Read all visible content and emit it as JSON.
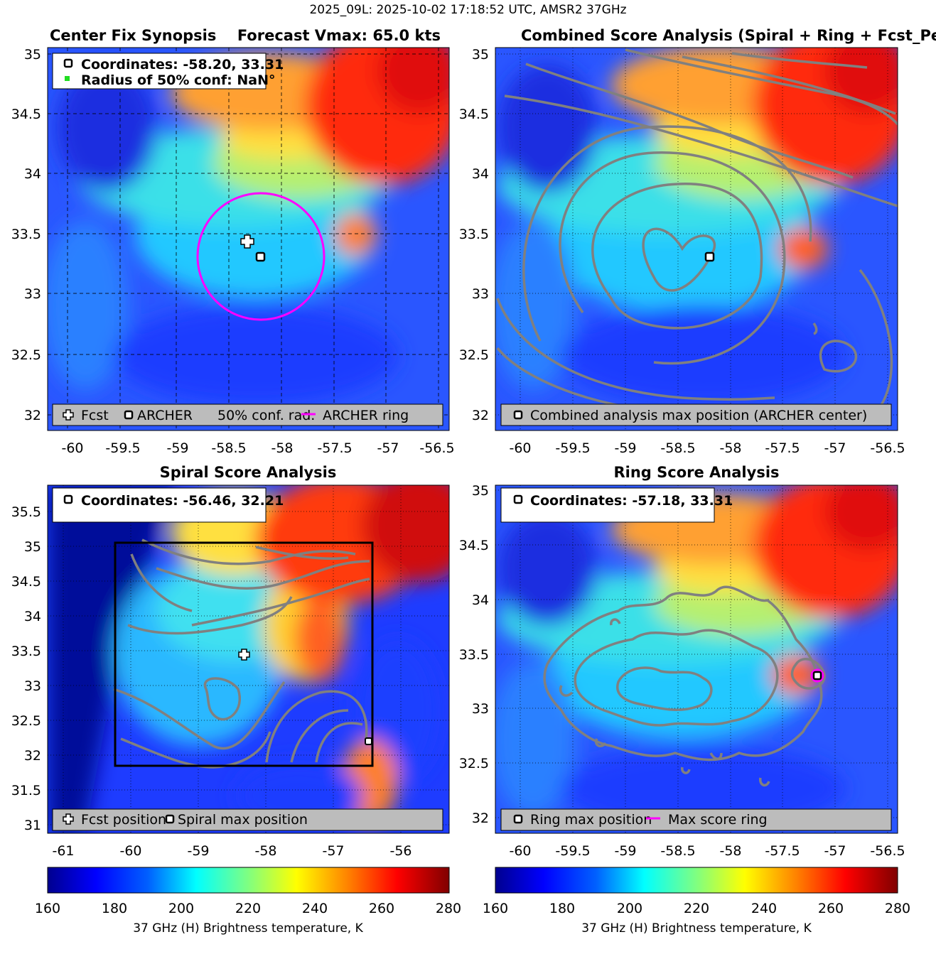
{
  "figure_title": "2025_09L: 2025-10-02 17:18:52 UTC, AMSR2 37GHz",
  "colors": {
    "contour": "#808080",
    "ring": "#ff00ff",
    "legend_bg": "#bcbcbc",
    "colormap": [
      "#00008f",
      "#0000ff",
      "#0080ff",
      "#00ffff",
      "#80ff80",
      "#ffff00",
      "#ff8000",
      "#ff0000",
      "#800000"
    ]
  },
  "chart_data": [
    {
      "type": "heatmap",
      "id": "synopsis",
      "title": "Center Fix Synopsis",
      "title_right": "Forecast Vmax: 65.0 kts",
      "xlim": [
        -60.25,
        -56.4
      ],
      "ylim": [
        31.9,
        35.1
      ],
      "xticks": [
        "-60",
        "-59.5",
        "-59",
        "-58.5",
        "-58",
        "-57.5",
        "-57",
        "-56.5"
      ],
      "yticks": [
        "32",
        "32.5",
        "33",
        "33.5",
        "34",
        "34.5",
        "35"
      ],
      "info_lines": [
        "Coordinates: -58.20, 33.31",
        "Radius of 50% conf: NaN°"
      ],
      "legend": [
        "Fcst",
        "ARCHER",
        "50% conf. rad.",
        "ARCHER ring"
      ],
      "points": {
        "fcst": [
          -58.33,
          33.45
        ],
        "archer": [
          -58.2,
          33.31
        ]
      },
      "ring": {
        "center": [
          -58.2,
          33.31
        ],
        "radius_deg": 0.6
      },
      "grid": "dashed"
    },
    {
      "type": "heatmap",
      "id": "combined",
      "title": "Combined Score Analysis (Spiral + Ring + Fcst_Pe",
      "xlim": [
        -60.25,
        -56.4
      ],
      "ylim": [
        31.9,
        35.1
      ],
      "xticks": [
        "-60",
        "-59.5",
        "-59",
        "-58.5",
        "-58",
        "-57.5",
        "-57",
        "-56.5"
      ],
      "yticks": [
        "32",
        "32.5",
        "33",
        "33.5",
        "34",
        "34.5",
        "35"
      ],
      "legend": [
        "Combined analysis max position (ARCHER center)"
      ],
      "points": {
        "archer": [
          -58.2,
          33.31
        ]
      },
      "grid": "dotted"
    },
    {
      "type": "heatmap",
      "id": "spiral",
      "title": "Spiral Score Analysis",
      "xlim": [
        -61.2,
        -55.3
      ],
      "ylim": [
        30.9,
        35.9
      ],
      "xticks": [
        "-61",
        "-60",
        "-59",
        "-58",
        "-57",
        "-56"
      ],
      "yticks": [
        "31",
        "31.5",
        "32",
        "32.5",
        "33",
        "33.5",
        "34",
        "34.5",
        "35",
        "35.5"
      ],
      "info_lines": [
        "Coordinates: -56.46, 32.21"
      ],
      "legend": [
        "Fcst position",
        "Spiral max position"
      ],
      "points": {
        "fcst": [
          -58.33,
          33.45
        ],
        "spiral_max": [
          -56.46,
          32.21
        ]
      },
      "box": {
        "x": [
          -60.25,
          -56.4
        ],
        "y": [
          31.85,
          35.05
        ]
      },
      "grid": "dotted"
    },
    {
      "type": "heatmap",
      "id": "ring",
      "title": "Ring Score Analysis",
      "xlim": [
        -60.25,
        -56.4
      ],
      "ylim": [
        31.9,
        35.05
      ],
      "xticks": [
        "-60",
        "-59.5",
        "-59",
        "-58.5",
        "-58",
        "-57.5",
        "-57",
        "-56.5"
      ],
      "yticks": [
        "32",
        "32.5",
        "33",
        "33.5",
        "34",
        "34.5",
        "35"
      ],
      "info_lines": [
        "Coordinates: -57.18, 33.31"
      ],
      "legend": [
        "Ring max position",
        "Max score ring"
      ],
      "points": {
        "ring_max": [
          -57.18,
          33.31
        ]
      },
      "grid": "dotted"
    }
  ],
  "colorbars": [
    {
      "ticks": [
        "160",
        "180",
        "200",
        "220",
        "240",
        "260",
        "280"
      ],
      "range": [
        160,
        280
      ],
      "label": "37 GHz (H) Brightness temperature, K"
    },
    {
      "ticks": [
        "160",
        "180",
        "200",
        "220",
        "240",
        "260",
        "280"
      ],
      "range": [
        160,
        280
      ],
      "label": "37 GHz (H) Brightness temperature, K"
    }
  ]
}
